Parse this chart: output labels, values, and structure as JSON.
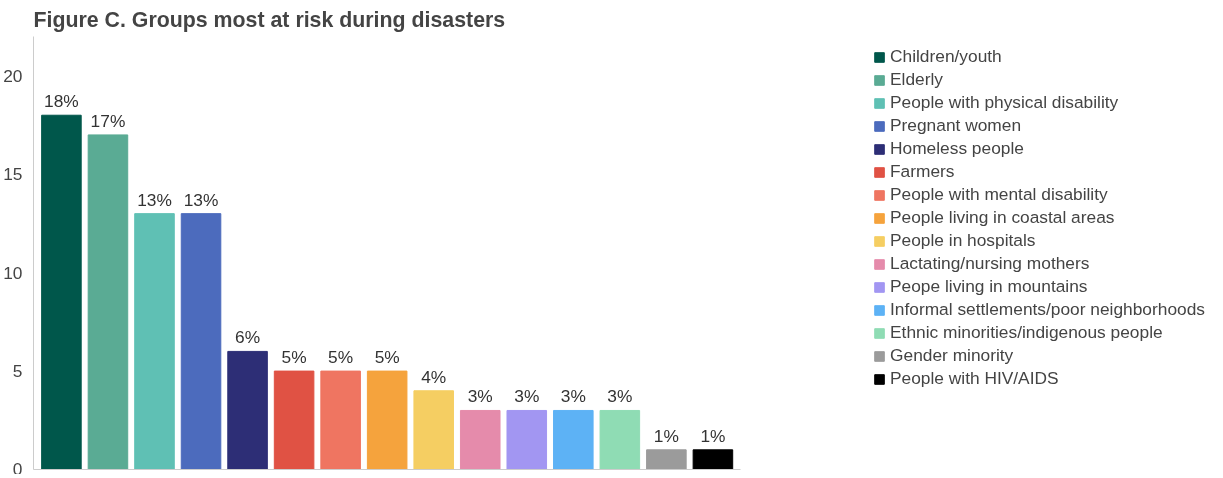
{
  "chart_data": {
    "type": "bar",
    "title": "Figure C. Groups most at risk during disasters",
    "categories": [
      null,
      null,
      null,
      null,
      null,
      null,
      null,
      null,
      null,
      null,
      null,
      null,
      null,
      null,
      null
    ],
    "stacked": true,
    "series": [
      {
        "name": "Children/youth",
        "color": "#00574b",
        "values": [
          18,
          null,
          null,
          null,
          null,
          null,
          null,
          null,
          null,
          null,
          null,
          null,
          null,
          null,
          null
        ],
        "value_labels": [
          "18%",
          null,
          null,
          null,
          null,
          null,
          null,
          null,
          null,
          null,
          null,
          null,
          null,
          null,
          null
        ]
      },
      {
        "name": "Elderly",
        "color": "#5aab94",
        "values": [
          null,
          17,
          null,
          null,
          null,
          null,
          null,
          null,
          null,
          null,
          null,
          null,
          null,
          null,
          null
        ],
        "value_labels": [
          null,
          "17%",
          null,
          null,
          null,
          null,
          null,
          null,
          null,
          null,
          null,
          null,
          null,
          null,
          null
        ]
      },
      {
        "name": "People with physical disability",
        "color": "#5fc0b4",
        "values": [
          null,
          null,
          13,
          null,
          null,
          null,
          null,
          null,
          null,
          null,
          null,
          null,
          null,
          null,
          null
        ],
        "value_labels": [
          null,
          null,
          "13%",
          null,
          null,
          null,
          null,
          null,
          null,
          null,
          null,
          null,
          null,
          null,
          null
        ]
      },
      {
        "name": "Pregnant women",
        "color": "#4c6bbd",
        "values": [
          null,
          null,
          null,
          13,
          null,
          null,
          null,
          null,
          null,
          null,
          null,
          null,
          null,
          null,
          null
        ],
        "value_labels": [
          null,
          null,
          null,
          "13%",
          null,
          null,
          null,
          null,
          null,
          null,
          null,
          null,
          null,
          null,
          null
        ]
      },
      {
        "name": "Homeless people",
        "color": "#2d2e76",
        "values": [
          null,
          null,
          null,
          null,
          6,
          null,
          null,
          null,
          null,
          null,
          null,
          null,
          null,
          null,
          null
        ],
        "value_labels": [
          null,
          null,
          null,
          null,
          "6%",
          null,
          null,
          null,
          null,
          null,
          null,
          null,
          null,
          null,
          null
        ]
      },
      {
        "name": "Farmers",
        "color": "#e05244",
        "values": [
          null,
          null,
          null,
          null,
          null,
          5,
          null,
          null,
          null,
          null,
          null,
          null,
          null,
          null,
          null
        ],
        "value_labels": [
          null,
          null,
          null,
          null,
          null,
          "5%",
          null,
          null,
          null,
          null,
          null,
          null,
          null,
          null,
          null
        ]
      },
      {
        "name": "People with mental disability",
        "color": "#ef7561",
        "values": [
          null,
          null,
          null,
          null,
          null,
          null,
          5,
          null,
          null,
          null,
          null,
          null,
          null,
          null,
          null
        ],
        "value_labels": [
          null,
          null,
          null,
          null,
          null,
          null,
          "5%",
          null,
          null,
          null,
          null,
          null,
          null,
          null,
          null
        ]
      },
      {
        "name": "People living in coastal areas",
        "color": "#f5a33d",
        "values": [
          null,
          null,
          null,
          null,
          null,
          null,
          null,
          5,
          null,
          null,
          null,
          null,
          null,
          null,
          null
        ],
        "value_labels": [
          null,
          null,
          null,
          null,
          null,
          null,
          null,
          "5%",
          null,
          null,
          null,
          null,
          null,
          null,
          null
        ]
      },
      {
        "name": "People in hospitals",
        "color": "#f5ce62",
        "values": [
          null,
          null,
          null,
          null,
          null,
          null,
          null,
          null,
          4,
          null,
          null,
          null,
          null,
          null,
          null
        ],
        "value_labels": [
          null,
          null,
          null,
          null,
          null,
          null,
          null,
          null,
          "4%",
          null,
          null,
          null,
          null,
          null,
          null
        ]
      },
      {
        "name": "Lactating/nursing mothers",
        "color": "#e58bab",
        "values": [
          null,
          null,
          null,
          null,
          null,
          null,
          null,
          null,
          null,
          3,
          null,
          null,
          null,
          null,
          null
        ],
        "value_labels": [
          null,
          null,
          null,
          null,
          null,
          null,
          null,
          null,
          null,
          "3%",
          null,
          null,
          null,
          null,
          null
        ]
      },
      {
        "name": "Peope living in mountains",
        "color": "#a296f2",
        "values": [
          null,
          null,
          null,
          null,
          null,
          null,
          null,
          null,
          null,
          null,
          3,
          null,
          null,
          null,
          null
        ],
        "value_labels": [
          null,
          null,
          null,
          null,
          null,
          null,
          null,
          null,
          null,
          null,
          "3%",
          null,
          null,
          null,
          null
        ]
      },
      {
        "name": "Informal settlements/poor neighborhoods",
        "color": "#5db2f5",
        "values": [
          null,
          null,
          null,
          null,
          null,
          null,
          null,
          null,
          null,
          null,
          null,
          3,
          null,
          null,
          null
        ],
        "value_labels": [
          null,
          null,
          null,
          null,
          null,
          null,
          null,
          null,
          null,
          null,
          null,
          "3%",
          null,
          null,
          null
        ]
      },
      {
        "name": "Ethnic minorities/indigenous people",
        "color": "#8fdcb4",
        "values": [
          null,
          null,
          null,
          null,
          null,
          null,
          null,
          null,
          null,
          null,
          null,
          null,
          3,
          null,
          null
        ],
        "value_labels": [
          null,
          null,
          null,
          null,
          null,
          null,
          null,
          null,
          null,
          null,
          null,
          null,
          "3%",
          null,
          null
        ]
      },
      {
        "name": "Gender minority",
        "color": "#9b9b9b",
        "values": [
          null,
          null,
          null,
          null,
          null,
          null,
          null,
          null,
          null,
          null,
          null,
          null,
          null,
          1,
          null
        ],
        "value_labels": [
          null,
          null,
          null,
          null,
          null,
          null,
          null,
          null,
          null,
          null,
          null,
          null,
          null,
          "1%",
          null
        ]
      },
      {
        "name": "People with HIV/AIDS",
        "color": "#000000",
        "values": [
          null,
          null,
          null,
          null,
          null,
          null,
          null,
          null,
          null,
          null,
          null,
          null,
          null,
          null,
          1
        ],
        "value_labels": [
          null,
          null,
          null,
          null,
          null,
          null,
          null,
          null,
          null,
          null,
          null,
          null,
          null,
          null,
          "1%"
        ]
      }
    ],
    "ylim": [
      0,
      22
    ],
    "yticks": [
      0,
      5,
      10,
      15,
      20
    ],
    "tick_labels": "y",
    "grid": false,
    "legend": "right"
  }
}
